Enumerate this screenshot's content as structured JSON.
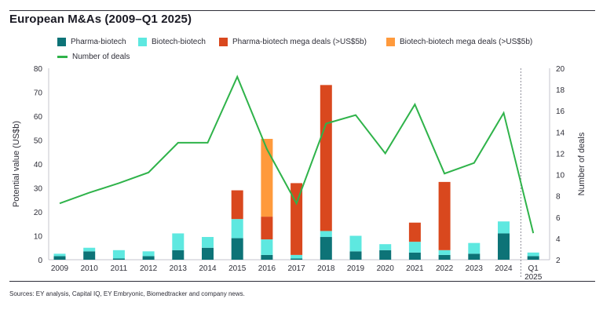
{
  "title": "European M&As (2009–Q1 2025)",
  "source": "Sources: EY analysis, Capital IQ, EY Embryonic, Biomedtracker and company news.",
  "colors": {
    "pharma_biotech": "#0d7377",
    "biotech_biotech": "#5ee8e0",
    "pharma_mega": "#d9481e",
    "biotech_mega": "#ff9a3c",
    "deals_line": "#2fb34a"
  },
  "chart_data": {
    "type": "bar",
    "stacked": true,
    "categories": [
      "2009",
      "2010",
      "2011",
      "2012",
      "2013",
      "2014",
      "2015",
      "2016",
      "2017",
      "2018",
      "2019",
      "2020",
      "2021",
      "2022",
      "2023",
      "2024",
      "Q1 2025"
    ],
    "series": [
      {
        "name": "Pharma-biotech",
        "values": [
          1.5,
          3.5,
          0.5,
          1.5,
          4,
          5,
          9,
          2,
          0.5,
          9.5,
          3.5,
          4,
          3,
          2,
          2.5,
          11,
          1.5
        ]
      },
      {
        "name": "Biotech-biotech",
        "values": [
          1,
          1.5,
          3.5,
          2,
          7,
          4.5,
          8,
          6.5,
          1.5,
          2.5,
          6.5,
          2.5,
          4.5,
          2,
          4.5,
          5,
          1.5
        ]
      },
      {
        "name": "Pharma-biotech mega deals (>US$5b)",
        "values": [
          0,
          0,
          0,
          0,
          0,
          0,
          12,
          9.5,
          30,
          61,
          0,
          0,
          8,
          28.5,
          0,
          0,
          0
        ]
      },
      {
        "name": "Biotech-biotech mega deals (>US$5b)",
        "values": [
          0,
          0,
          0,
          0,
          0,
          0,
          0,
          32.5,
          0,
          0,
          0,
          0,
          0,
          0,
          0,
          0,
          0
        ]
      }
    ],
    "line_series": {
      "name": "Number of deals",
      "values": [
        7.3,
        8.3,
        9.2,
        10.2,
        13,
        13,
        19.2,
        12.4,
        7.3,
        14.8,
        15.6,
        12,
        16.6,
        10.1,
        11.1,
        15.8,
        4.5
      ]
    },
    "x_tick_labels": [
      [
        "2009"
      ],
      [
        "2010"
      ],
      [
        "2011"
      ],
      [
        "2012"
      ],
      [
        "2013"
      ],
      [
        "2014"
      ],
      [
        "2015"
      ],
      [
        "2016"
      ],
      [
        "2017"
      ],
      [
        "2018"
      ],
      [
        "2019"
      ],
      [
        "2020"
      ],
      [
        "2021"
      ],
      [
        "2022"
      ],
      [
        "2023"
      ],
      [
        "2024"
      ],
      [
        "Q1",
        "2025"
      ]
    ],
    "ylabel": "Potential value (US$b)",
    "ylim": [
      0,
      80
    ],
    "yticks": [
      0,
      10,
      20,
      30,
      40,
      50,
      60,
      70,
      80
    ],
    "y2label": "Number of deals",
    "y2lim": [
      2,
      20
    ],
    "y2ticks": [
      2,
      4,
      6,
      8,
      10,
      12,
      14,
      16,
      18,
      20
    ],
    "grid": false,
    "legend": {
      "position": "top",
      "entries": [
        "Pharma-biotech",
        "Biotech-biotech",
        "Pharma-biotech mega deals (>US$5b)",
        "Biotech-biotech mega deals (>US$5b)",
        "Number of deals"
      ]
    }
  }
}
